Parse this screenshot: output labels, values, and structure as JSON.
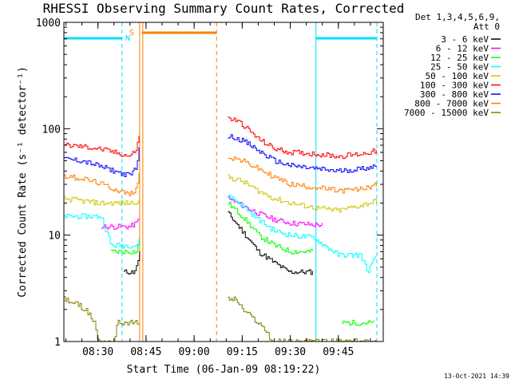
{
  "chart_data": {
    "type": "line",
    "title": "RHESSI Observing Summary Count Rates, Corrected",
    "xlabel": "Start Time (06-Jan-09 08:19:22)",
    "ylabel": "Corrected Count Rate (s⁻¹ detector⁻¹)",
    "yscale": "log",
    "ylim": [
      1,
      1000
    ],
    "xlim": [
      "08:19:22",
      "09:59:00"
    ],
    "x_ticks": [
      "08:30",
      "08:45",
      "09:00",
      "09:15",
      "09:30",
      "09:45"
    ],
    "y_ticks": [
      "1",
      "10",
      "100",
      "1000"
    ],
    "legend_header": [
      "Det 1,3,4,5,6,9,",
      "Att 0"
    ],
    "legend_position": "right",
    "footer_date": "13-Oct-2021 14:39",
    "flags": {
      "saa_label": "S",
      "night_label": "N",
      "saa_color": "#ff7f00",
      "night_color": "#00dfff",
      "saa_bar": [
        "08:43:40",
        "09:07:00"
      ],
      "night_bars": [
        [
          "08:19:22",
          "08:37:30"
        ],
        [
          "09:38:00",
          "09:57:00"
        ]
      ],
      "night_edges": [
        "08:19:22",
        "08:37:30",
        "09:38:00",
        "09:57:00"
      ],
      "saa_edges": [
        "08:43:00",
        "08:44:00"
      ],
      "saa_dashed_edge": "09:07:00"
    },
    "series": [
      {
        "name": "3 - 6 keV",
        "color": "#000000",
        "segments": [
          {
            "x": [
              "08:38:00",
              "08:39:30",
              "08:41:00",
              "08:42:00",
              "08:43:00"
            ],
            "y": [
              4.5,
              4.5,
              4.5,
              5,
              7
            ]
          },
          {
            "x": [
              "09:10:30",
              "09:13:00",
              "09:16:00",
              "09:20:00",
              "09:25:00",
              "09:29:00",
              "09:30:00",
              "09:37:00"
            ],
            "y": [
              16,
              13,
              10,
              7,
              5.5,
              4.6,
              4.5,
              4.5
            ]
          }
        ]
      },
      {
        "name": "6 - 12 keV",
        "color": "#ff00ff",
        "segments": [
          {
            "x": [
              "08:31:00",
              "08:35:00",
              "08:38:00",
              "08:40:00",
              "08:42:00",
              "08:43:00"
            ],
            "y": [
              12,
              12,
              12,
              12,
              13,
              15
            ]
          },
          {
            "x": [
              "09:10:30",
              "09:15:00",
              "09:20:00",
              "09:25:00",
              "09:30:00",
              "09:37:00",
              "09:40:00"
            ],
            "y": [
              22,
              19,
              16,
              14,
              13,
              12.5,
              12.5
            ]
          }
        ]
      },
      {
        "name": "12 - 25 keV",
        "color": "#00ff00",
        "segments": [
          {
            "x": [
              "08:34:00",
              "08:38:00",
              "08:42:00",
              "08:43:00"
            ],
            "y": [
              7,
              7,
              7,
              9
            ]
          },
          {
            "x": [
              "09:10:30",
              "09:15:00",
              "09:20:00",
              "09:25:00",
              "09:30:00",
              "09:37:00"
            ],
            "y": [
              20,
              15,
              10,
              8,
              7,
              7
            ]
          },
          {
            "x": [
              "09:46:00",
              "09:52:00",
              "09:56:00"
            ],
            "y": [
              1.5,
              1.5,
              1.5
            ]
          }
        ]
      },
      {
        "name": "25 - 50 keV",
        "color": "#00ffff",
        "segments": [
          {
            "x": [
              "08:19:22",
              "08:25:00",
              "08:31:00",
              "08:33:00",
              "08:34:00",
              "08:37:00",
              "08:42:00",
              "08:43:00"
            ],
            "y": [
              15,
              15,
              15,
              10,
              8,
              8,
              8,
              9
            ]
          },
          {
            "x": [
              "09:10:30",
              "09:15:00",
              "09:20:00",
              "09:25:00",
              "09:30:00",
              "09:37:00",
              "09:45:00",
              "09:52:00",
              "09:54:00",
              "09:57:00"
            ],
            "y": [
              24,
              19,
              14,
              11,
              10,
              9.5,
              6.5,
              6.5,
              4.5,
              6.5
            ]
          }
        ]
      },
      {
        "name": "50 - 100 keV",
        "color": "#c8c800",
        "segments": [
          {
            "x": [
              "08:19:22",
              "08:25:00",
              "08:30:00",
              "08:35:00",
              "08:40:00",
              "08:43:00"
            ],
            "y": [
              22,
              21,
              20,
              20,
              20,
              21
            ]
          },
          {
            "x": [
              "09:10:30",
              "09:15:00",
              "09:20:00",
              "09:25:00",
              "09:30:00",
              "09:38:00",
              "09:45:00",
              "09:52:00",
              "09:57:00"
            ],
            "y": [
              35,
              32,
              26,
              22,
              20,
              18,
              17,
              19,
              21
            ]
          }
        ]
      },
      {
        "name": "100 - 300 keV",
        "color": "#ff0000",
        "segments": [
          {
            "x": [
              "08:19:22",
              "08:25:00",
              "08:30:00",
              "08:35:00",
              "08:40:00",
              "08:42:00",
              "08:43:00"
            ],
            "y": [
              70,
              68,
              65,
              60,
              55,
              65,
              95
            ]
          },
          {
            "x": [
              "09:10:30",
              "09:13:00",
              "09:15:00",
              "09:20:00",
              "09:25:00",
              "09:30:00",
              "09:38:00",
              "09:45:00",
              "09:52:00",
              "09:57:00"
            ],
            "y": [
              125,
              120,
              110,
              80,
              65,
              60,
              58,
              55,
              58,
              62
            ]
          }
        ]
      },
      {
        "name": "300 - 800 keV",
        "color": "#0000ff",
        "segments": [
          {
            "x": [
              "08:19:22",
              "08:25:00",
              "08:30:00",
              "08:35:00",
              "08:40:00",
              "08:42:00",
              "08:43:00"
            ],
            "y": [
              52,
              50,
              45,
              40,
              36,
              45,
              70
            ]
          },
          {
            "x": [
              "09:10:30",
              "09:13:00",
              "09:15:00",
              "09:20:00",
              "09:25:00",
              "09:30:00",
              "09:38:00",
              "09:45:00",
              "09:52:00",
              "09:57:00"
            ],
            "y": [
              85,
              82,
              78,
              62,
              50,
              45,
              42,
              40,
              42,
              45
            ]
          }
        ]
      },
      {
        "name": "800 - 7000 keV",
        "color": "#ff7f00",
        "segments": [
          {
            "x": [
              "08:19:22",
              "08:25:00",
              "08:30:00",
              "08:35:00",
              "08:40:00",
              "08:42:00",
              "08:43:00"
            ],
            "y": [
              36,
              34,
              31,
              27,
              24,
              28,
              40
            ]
          },
          {
            "x": [
              "09:10:30",
              "09:13:00",
              "09:15:00",
              "09:20:00",
              "09:25:00",
              "09:30:00",
              "09:38:00",
              "09:45:00",
              "09:52:00",
              "09:57:00"
            ],
            "y": [
              55,
              52,
              50,
              42,
              35,
              30,
              28,
              26,
              27,
              30
            ]
          }
        ]
      },
      {
        "name": "7000 - 15000 keV",
        "color": "#808000",
        "segments": [
          {
            "x": [
              "08:19:22",
              "08:24:00",
              "08:26:00",
              "08:29:00",
              "08:30:00",
              "08:35:00",
              "08:36:00",
              "08:43:00"
            ],
            "y": [
              2.5,
              2.2,
              2.0,
              1.5,
              1.0,
              1.0,
              1.5,
              1.5
            ]
          },
          {
            "x": [
              "09:10:30",
              "09:13:00",
              "09:15:00",
              "09:20:00",
              "09:23:00",
              "09:24:00",
              "09:57:00"
            ],
            "y": [
              2.5,
              2.5,
              2.0,
              1.5,
              1.2,
              1.0,
              1.0
            ]
          }
        ]
      }
    ]
  }
}
